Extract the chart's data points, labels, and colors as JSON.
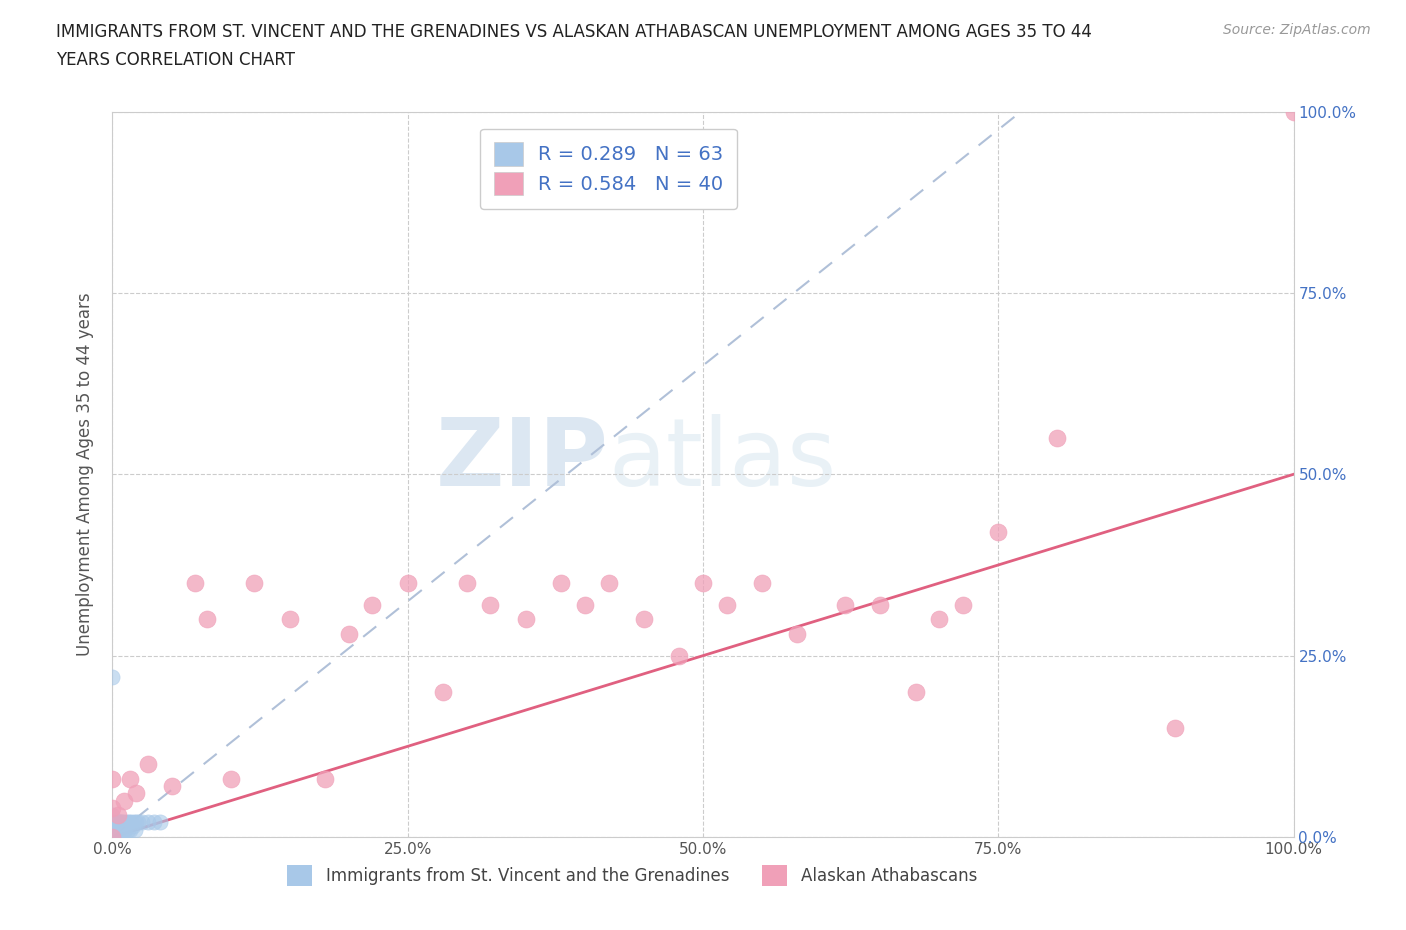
{
  "title_line1": "IMMIGRANTS FROM ST. VINCENT AND THE GRENADINES VS ALASKAN ATHABASCAN UNEMPLOYMENT AMONG AGES 35 TO 44",
  "title_line2": "YEARS CORRELATION CHART",
  "source": "Source: ZipAtlas.com",
  "ylabel": "Unemployment Among Ages 35 to 44 years",
  "xlim": [
    0.0,
    1.0
  ],
  "ylim": [
    0.0,
    1.0
  ],
  "xticks": [
    0.0,
    0.25,
    0.5,
    0.75,
    1.0
  ],
  "yticks": [
    0.0,
    0.25,
    0.5,
    0.75,
    1.0
  ],
  "xtick_labels": [
    "0.0%",
    "25.0%",
    "50.0%",
    "75.0%",
    "100.0%"
  ],
  "ytick_labels": [
    "0.0%",
    "25.0%",
    "50.0%",
    "75.0%",
    "100.0%"
  ],
  "blue_color": "#a8c8e8",
  "pink_color": "#f0a0b8",
  "blue_trend_color": "#b0c0d8",
  "pink_trend_color": "#e06080",
  "blue_R": 0.289,
  "blue_N": 63,
  "pink_R": 0.584,
  "pink_N": 40,
  "legend1_label1": "R = 0.289   N = 63",
  "legend1_label2": "R = 0.584   N = 40",
  "legend2_label1": "Immigrants from St. Vincent and the Grenadines",
  "legend2_label2": "Alaskan Athabascans",
  "blue_scatter_x": [
    0.0,
    0.0,
    0.0,
    0.0,
    0.0,
    0.0,
    0.0,
    0.0,
    0.0,
    0.0,
    0.0,
    0.0,
    0.0,
    0.0,
    0.0,
    0.0,
    0.0,
    0.0,
    0.0,
    0.0,
    0.0,
    0.0,
    0.0,
    0.0,
    0.0,
    0.0,
    0.0,
    0.0,
    0.0,
    0.0,
    0.002,
    0.003,
    0.003,
    0.004,
    0.005,
    0.005,
    0.005,
    0.006,
    0.006,
    0.007,
    0.007,
    0.008,
    0.008,
    0.009,
    0.01,
    0.01,
    0.01,
    0.011,
    0.012,
    0.013,
    0.014,
    0.015,
    0.016,
    0.017,
    0.018,
    0.019,
    0.02,
    0.022,
    0.025,
    0.03,
    0.035,
    0.04,
    0.0
  ],
  "blue_scatter_y": [
    0.0,
    0.0,
    0.0,
    0.0,
    0.0,
    0.0,
    0.0,
    0.0,
    0.0,
    0.0,
    0.0,
    0.0,
    0.0,
    0.0,
    0.0,
    0.0,
    0.0,
    0.0,
    0.0,
    0.005,
    0.005,
    0.008,
    0.01,
    0.01,
    0.012,
    0.015,
    0.02,
    0.02,
    0.03,
    0.22,
    0.01,
    0.01,
    0.015,
    0.01,
    0.01,
    0.015,
    0.02,
    0.01,
    0.02,
    0.01,
    0.02,
    0.01,
    0.02,
    0.01,
    0.01,
    0.015,
    0.02,
    0.01,
    0.02,
    0.01,
    0.02,
    0.01,
    0.02,
    0.015,
    0.02,
    0.01,
    0.02,
    0.02,
    0.02,
    0.02,
    0.02,
    0.02,
    0.0
  ],
  "pink_scatter_x": [
    0.0,
    0.0,
    0.0,
    0.005,
    0.01,
    0.015,
    0.02,
    0.03,
    0.05,
    0.07,
    0.08,
    0.1,
    0.12,
    0.15,
    0.18,
    0.2,
    0.22,
    0.25,
    0.28,
    0.3,
    0.32,
    0.35,
    0.38,
    0.4,
    0.42,
    0.45,
    0.48,
    0.5,
    0.52,
    0.55,
    0.58,
    0.62,
    0.65,
    0.68,
    0.7,
    0.72,
    0.75,
    0.8,
    0.9,
    1.0
  ],
  "pink_scatter_y": [
    0.0,
    0.04,
    0.08,
    0.03,
    0.05,
    0.08,
    0.06,
    0.1,
    0.07,
    0.35,
    0.3,
    0.08,
    0.35,
    0.3,
    0.08,
    0.28,
    0.32,
    0.35,
    0.2,
    0.35,
    0.32,
    0.3,
    0.35,
    0.32,
    0.35,
    0.3,
    0.25,
    0.35,
    0.32,
    0.35,
    0.28,
    0.32,
    0.32,
    0.2,
    0.3,
    0.32,
    0.42,
    0.55,
    0.15,
    1.0
  ],
  "blue_line_x": [
    0.0,
    1.0
  ],
  "blue_line_y": [
    0.0,
    1.2
  ],
  "pink_line_x": [
    0.0,
    1.0
  ],
  "pink_line_y": [
    0.0,
    0.5
  ]
}
